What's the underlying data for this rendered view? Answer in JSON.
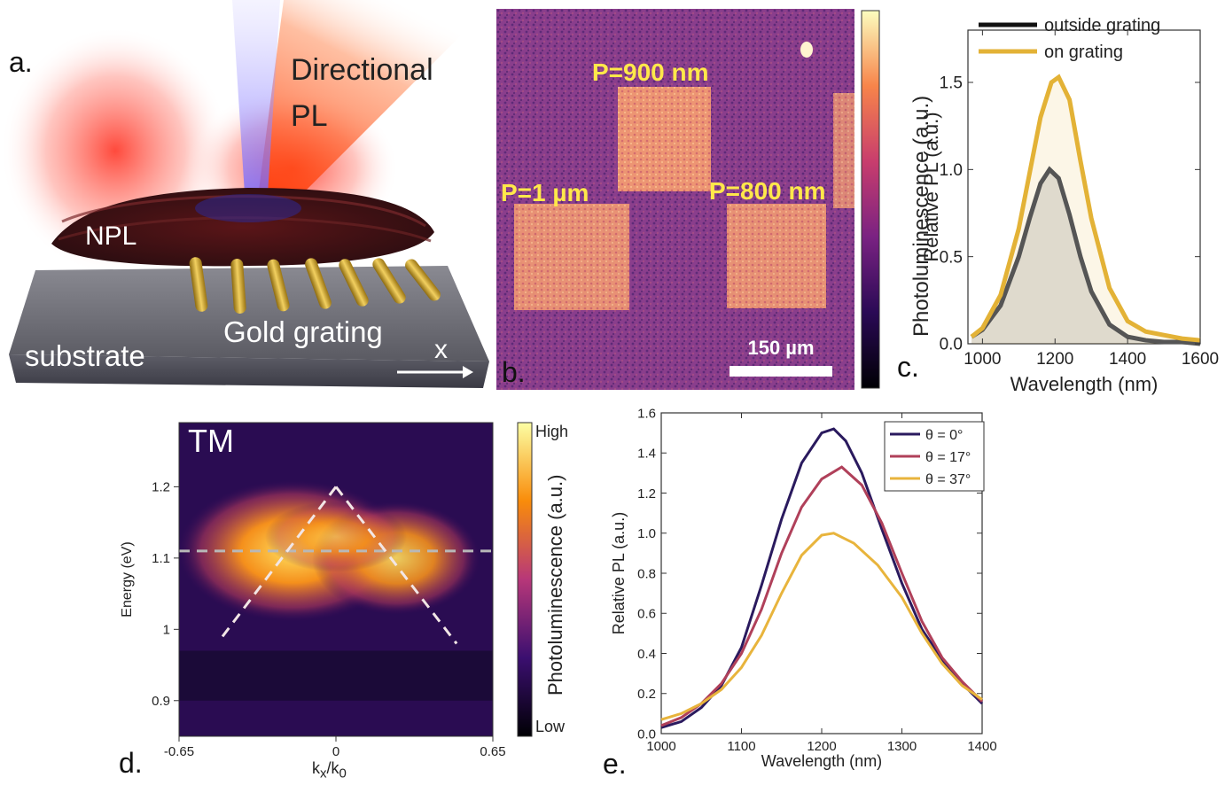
{
  "panel_a": {
    "letter": "a.",
    "directional": "Directional",
    "pl": "PL",
    "npl": "NPL",
    "gold_grating": "Gold grating",
    "substrate": "substrate",
    "axis_x": "x"
  },
  "panel_b": {
    "letter": "b.",
    "labels": {
      "p900": "P=900 nm",
      "p1um": "P=1 µm",
      "p800": "P=800 nm"
    },
    "scalebar": "150 µm",
    "colorbar_label": "Photoluminescence (a.u.)"
  },
  "panel_c": {
    "letter": "c.",
    "colors": {
      "outside": "#111111",
      "on": "#e3b236"
    }
  },
  "panel_d": {
    "letter": "d.",
    "tag": "TM",
    "xlabel_main": "k",
    "xlabel_sub1": "x",
    "xlabel_sep": "/k",
    "xlabel_sub2": "0",
    "colorbar_high": "High",
    "colorbar_low": "Low",
    "colorbar_label": "Photoluminescence (a.u.)"
  },
  "panel_e": {
    "letter": "e."
  },
  "chart_data": [
    {
      "type": "line",
      "panel": "c",
      "xlabel": "Wavelength (nm)",
      "ylabel": "Relative PL (a.u.)",
      "xlim": [
        960,
        1600
      ],
      "ylim": [
        0,
        1.8
      ],
      "xticks": [
        "1000",
        "1200",
        "1400",
        "1600"
      ],
      "yticks": [
        "0.0",
        "0.5",
        "1.0",
        "1.5"
      ],
      "legend": "top-right",
      "series": [
        {
          "name": "outside grating",
          "color": "#111111",
          "x": [
            970,
            1000,
            1050,
            1100,
            1130,
            1160,
            1185,
            1210,
            1240,
            1270,
            1300,
            1350,
            1400,
            1450,
            1500,
            1550,
            1600
          ],
          "y": [
            0.04,
            0.08,
            0.22,
            0.5,
            0.72,
            0.92,
            1.0,
            0.95,
            0.74,
            0.5,
            0.3,
            0.11,
            0.04,
            0.02,
            0.01,
            0.01,
            0.0
          ]
        },
        {
          "name": "on grating",
          "color": "#e3b236",
          "x": [
            970,
            1000,
            1050,
            1100,
            1130,
            1160,
            1190,
            1210,
            1240,
            1270,
            1300,
            1350,
            1400,
            1450,
            1500,
            1550,
            1600
          ],
          "y": [
            0.04,
            0.09,
            0.28,
            0.66,
            0.98,
            1.3,
            1.5,
            1.53,
            1.4,
            1.05,
            0.72,
            0.32,
            0.13,
            0.07,
            0.05,
            0.03,
            0.02
          ]
        }
      ]
    },
    {
      "type": "heatmap",
      "panel": "d",
      "xlabel": "k_x/k_0",
      "ylabel": "Energy (eV)",
      "xlim": [
        -0.65,
        0.65
      ],
      "ylim": [
        0.85,
        1.29
      ],
      "xticks": [
        "-0.65",
        "0",
        "0.65"
      ],
      "yticks": [
        "0.9",
        "1",
        "1.1",
        "1.2"
      ],
      "dashed_lines": {
        "horizontal_energy": 1.11,
        "left_branch": [
          [
            -0.47,
            0.99
          ],
          [
            0,
            1.2
          ]
        ],
        "right_branch": [
          [
            0,
            1.2
          ],
          [
            0.5,
            0.98
          ]
        ]
      }
    },
    {
      "type": "line",
      "panel": "e",
      "xlabel": "Wavelength (nm)",
      "ylabel": "Relative PL (a.u.)",
      "xlim": [
        1000,
        1400
      ],
      "ylim": [
        0,
        1.6
      ],
      "xticks": [
        "1000",
        "1100",
        "1200",
        "1300",
        "1400"
      ],
      "yticks": [
        "0.0",
        "0.2",
        "0.4",
        "0.6",
        "0.8",
        "1.0",
        "1.2",
        "1.4",
        "1.6"
      ],
      "legend": "top-right",
      "series": [
        {
          "name": "θ = 0°",
          "color": "#2a1a5e",
          "x": [
            1000,
            1025,
            1050,
            1075,
            1100,
            1125,
            1150,
            1175,
            1200,
            1215,
            1230,
            1250,
            1275,
            1300,
            1325,
            1350,
            1375,
            1400
          ],
          "y": [
            0.03,
            0.06,
            0.13,
            0.24,
            0.43,
            0.74,
            1.07,
            1.35,
            1.5,
            1.52,
            1.46,
            1.3,
            1.02,
            0.75,
            0.52,
            0.37,
            0.25,
            0.15
          ]
        },
        {
          "name": "θ = 17°",
          "color": "#b0405a",
          "x": [
            1000,
            1025,
            1050,
            1075,
            1100,
            1125,
            1150,
            1175,
            1200,
            1225,
            1250,
            1275,
            1300,
            1325,
            1350,
            1375,
            1400
          ],
          "y": [
            0.04,
            0.08,
            0.15,
            0.25,
            0.4,
            0.62,
            0.9,
            1.13,
            1.27,
            1.33,
            1.24,
            1.05,
            0.8,
            0.56,
            0.38,
            0.26,
            0.16
          ]
        },
        {
          "name": "θ = 37°",
          "color": "#e8b43c",
          "x": [
            1000,
            1025,
            1050,
            1075,
            1100,
            1125,
            1150,
            1175,
            1200,
            1215,
            1240,
            1270,
            1300,
            1325,
            1350,
            1375,
            1400
          ],
          "y": [
            0.07,
            0.1,
            0.15,
            0.22,
            0.33,
            0.49,
            0.7,
            0.89,
            0.99,
            1.0,
            0.95,
            0.84,
            0.68,
            0.5,
            0.35,
            0.24,
            0.17
          ]
        }
      ]
    }
  ]
}
